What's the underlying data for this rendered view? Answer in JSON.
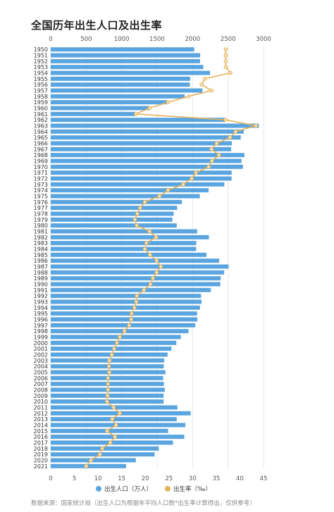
{
  "title": "全国历年出生人口及出生率",
  "source": "数据来源：国家统计局（出生人口为根据年平均人口数*出生率计算得出，仅供参考）",
  "colors": {
    "bar": "#5aa5e0",
    "line": "#e6b25a",
    "marker_fill": "#f7e2b6",
    "grid": "#e8e8e8"
  },
  "chart_data": {
    "type": "bar",
    "orientation": "horizontal",
    "title": "全国历年出生人口及出生率",
    "categories": [
      "1950",
      "1951",
      "1952",
      "1953",
      "1954",
      "1955",
      "1956",
      "1957",
      "1958",
      "1959",
      "1960",
      "1961",
      "1962",
      "1963",
      "1964",
      "1965",
      "1966",
      "1967",
      "1968",
      "1969",
      "1970",
      "1971",
      "1972",
      "1973",
      "1974",
      "1975",
      "1976",
      "1977",
      "1978",
      "1979",
      "1980",
      "1981",
      "1982",
      "1983",
      "1984",
      "1985",
      "1986",
      "1987",
      "1988",
      "1989",
      "1990",
      "1991",
      "1992",
      "1993",
      "1994",
      "1995",
      "1996",
      "1997",
      "1998",
      "1999",
      "2000",
      "2001",
      "2002",
      "2003",
      "2004",
      "2005",
      "2006",
      "2007",
      "2008",
      "2009",
      "2010",
      "2011",
      "2012",
      "2013",
      "2014",
      "2015",
      "2016",
      "2017",
      "2018",
      "2019",
      "2020",
      "2021"
    ],
    "series": [
      {
        "name": "出生人口（万人）",
        "axis": "top",
        "xlim": [
          0,
          3000
        ],
        "ticks": [
          "0",
          "500",
          "1000",
          "1500",
          "2000",
          "2500",
          "3000"
        ],
        "values": [
          2023,
          2107,
          2105,
          2151,
          2245,
          1965,
          1961,
          2138,
          1889,
          1635,
          1389,
          1187,
          2451,
          2934,
          2721,
          2679,
          2554,
          2543,
          2731,
          2690,
          2710,
          2551,
          2550,
          2447,
          2226,
          2102,
          1849,
          1783,
          1733,
          1715,
          1776,
          2064,
          2230,
          2052,
          2050,
          2196,
          2374,
          2508,
          2445,
          2396,
          2391,
          2258,
          2119,
          2126,
          2104,
          2063,
          2067,
          2038,
          1942,
          1834,
          1771,
          1702,
          1647,
          1599,
          1593,
          1617,
          1585,
          1595,
          1608,
          1591,
          1592,
          1786,
          1973,
          1776,
          1897,
          1655,
          1883,
          1723,
          1523,
          1465,
          1200,
          1062
        ]
      },
      {
        "name": "出生率（‰）",
        "axis": "bottom",
        "xlim": [
          0,
          45
        ],
        "ticks": [
          "0",
          "5",
          "10",
          "15",
          "20",
          "25",
          "30",
          "35",
          "40",
          "45"
        ],
        "values": [
          37.0,
          37.0,
          37.0,
          37.0,
          38.0,
          32.6,
          31.9,
          34.0,
          29.2,
          24.8,
          20.9,
          18.0,
          37.0,
          43.4,
          39.1,
          37.9,
          35.1,
          34.0,
          35.6,
          34.1,
          33.4,
          30.7,
          29.8,
          28.0,
          24.8,
          23.0,
          19.9,
          18.9,
          18.3,
          17.8,
          18.2,
          20.9,
          22.3,
          20.2,
          19.9,
          21.0,
          22.4,
          23.3,
          22.4,
          21.6,
          21.1,
          19.7,
          18.2,
          18.1,
          17.7,
          17.1,
          17.0,
          16.6,
          15.6,
          14.6,
          14.0,
          13.4,
          12.9,
          12.4,
          12.3,
          12.4,
          12.1,
          12.1,
          12.1,
          12.0,
          11.9,
          13.3,
          14.6,
          13.0,
          13.8,
          11.9,
          13.6,
          12.6,
          10.9,
          10.4,
          8.5,
          7.5
        ]
      }
    ],
    "legend": {
      "items": [
        "出生人口（万人）",
        "出生率（‰）"
      ],
      "position": "bottom"
    },
    "grid": true
  }
}
